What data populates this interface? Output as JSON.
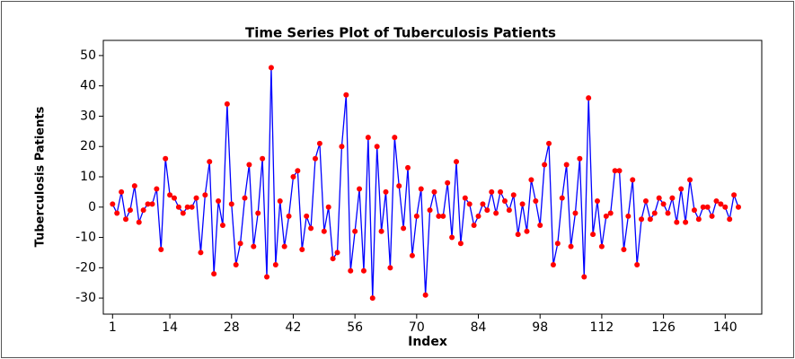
{
  "chart_data": {
    "type": "line",
    "title": "Time Series Plot of Tuberculosis Patients",
    "x_label": "Index",
    "y_label": "Tuberculosis Patients",
    "x": [
      1,
      2,
      3,
      4,
      5,
      6,
      7,
      8,
      9,
      10,
      11,
      12,
      13,
      14,
      15,
      16,
      17,
      18,
      19,
      20,
      21,
      22,
      23,
      24,
      25,
      26,
      27,
      28,
      29,
      30,
      31,
      32,
      33,
      34,
      35,
      36,
      37,
      38,
      39,
      40,
      41,
      42,
      43,
      44,
      45,
      46,
      47,
      48,
      49,
      50,
      51,
      52,
      53,
      54,
      55,
      56,
      57,
      58,
      59,
      60,
      61,
      62,
      63,
      64,
      65,
      66,
      67,
      68,
      69,
      70,
      71,
      72,
      73,
      74,
      75,
      76,
      77,
      78,
      79,
      80,
      81,
      82,
      83,
      84,
      85,
      86,
      87,
      88,
      89,
      90,
      91,
      92,
      93,
      94,
      95,
      96,
      97,
      98,
      99,
      100,
      101,
      102,
      103,
      104,
      105,
      106,
      107,
      108,
      109,
      110,
      111,
      112,
      113,
      114,
      115,
      116,
      117,
      118,
      119,
      120,
      121,
      122,
      123,
      124,
      125,
      126,
      127,
      128,
      129,
      130,
      131,
      132,
      133,
      134,
      135,
      136,
      137,
      138,
      139,
      140,
      141,
      142,
      143
    ],
    "series": [
      {
        "name": "Tuberculosis Patients",
        "color": "#0000ff",
        "marker_color": "#ff0000",
        "values": [
          1,
          -2,
          5,
          -4,
          -1,
          7,
          -5,
          -1,
          1,
          1,
          6,
          -14,
          16,
          4,
          3,
          0,
          -2,
          0,
          0,
          3,
          -15,
          4,
          15,
          -22,
          2,
          -6,
          34,
          1,
          -19,
          -12,
          3,
          14,
          -13,
          -2,
          16,
          -23,
          46,
          -19,
          2,
          -13,
          -3,
          10,
          12,
          -14,
          -3,
          -7,
          16,
          21,
          -8,
          0,
          -17,
          -15,
          20,
          37,
          -21,
          -8,
          6,
          -21,
          23,
          -30,
          20,
          -8,
          5,
          -20,
          23,
          7,
          -7,
          13,
          -16,
          -3,
          6,
          -29,
          -1,
          5,
          -3,
          -3,
          8,
          -10,
          15,
          -12,
          3,
          1,
          -6,
          -3,
          1,
          -1,
          5,
          -2,
          5,
          2,
          -1,
          4,
          -9,
          1,
          -8,
          9,
          2,
          -6,
          14,
          21,
          -19,
          -12,
          3,
          14,
          -13,
          -2,
          16,
          -23,
          36,
          -9,
          2,
          -13,
          -3,
          -2,
          12,
          12,
          -14,
          -3,
          9,
          -19,
          -4,
          2,
          -4,
          -2,
          3,
          1,
          -2,
          3,
          -5,
          6,
          -5,
          9,
          -1,
          -4,
          0,
          0,
          -3,
          2,
          1,
          0,
          -4,
          4,
          0
        ]
      }
    ],
    "xlim": [
      -1.1,
      148.3
    ],
    "ylim": [
      -35.3,
      55
    ],
    "xticks": [
      1,
      14,
      28,
      42,
      56,
      70,
      84,
      98,
      112,
      126,
      140
    ],
    "yticks": [
      -30,
      -20,
      -10,
      0,
      10,
      20,
      30,
      40,
      50
    ]
  }
}
